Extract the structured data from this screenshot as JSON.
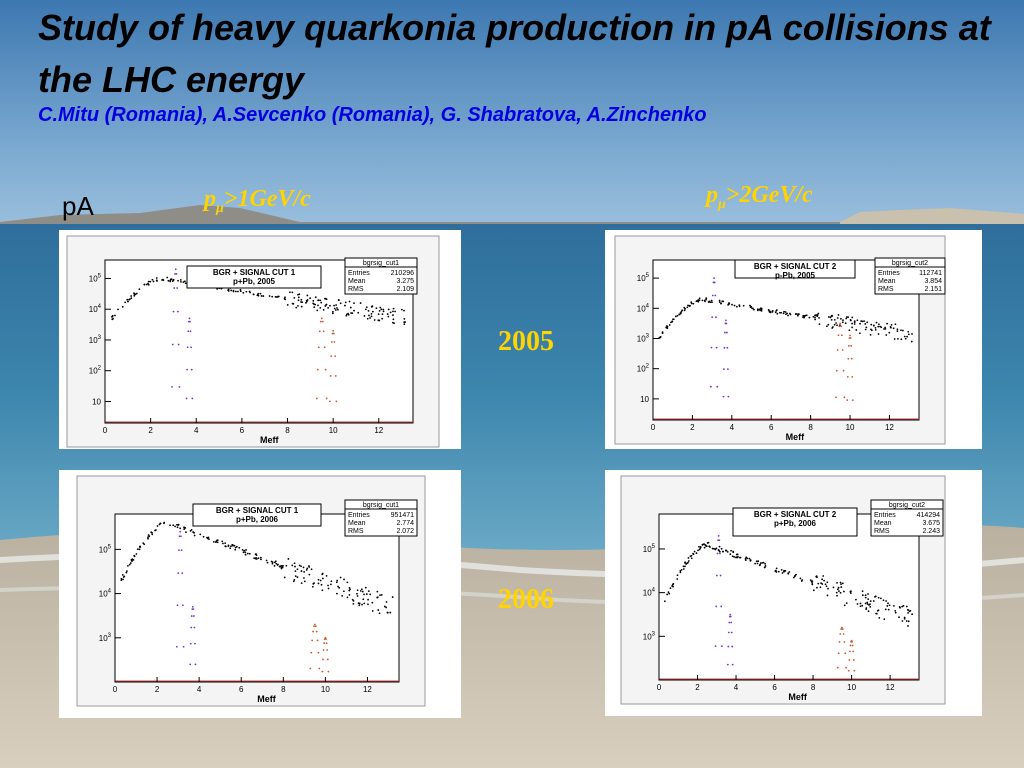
{
  "slide": {
    "title": "Study of heavy quarkonia production in pA collisions at  the LHC energy",
    "authors": "C.Mitu (Romania), A.Sevcenko (Romania), G. Shabratova, A.Zinchenko",
    "system_label": "pA",
    "cut_left": {
      "p": "p",
      "mu": "μ",
      "rest": ">1GeV/c"
    },
    "cut_right": {
      "p": "p",
      "mu": "μ",
      "rest": ">2GeV/c"
    },
    "year_2005": "2005",
    "year_2006": "2006",
    "colors": {
      "title": "#000000",
      "authors": "#0000e0",
      "accent": "#ffd400",
      "signal_jpsi": "#7733cc",
      "signal_upsilon": "#cc5533",
      "background": "#000000"
    }
  },
  "panels": [
    {
      "id": "p2005a",
      "box_line1": "BGR + SIGNAL CUT 1",
      "box_line2": "p+Pb, 2005",
      "stats_name": "bgrsig_cut1",
      "stats": [
        {
          "k": "Entries",
          "v": "210296"
        },
        {
          "k": "Mean",
          "v": "3.275"
        },
        {
          "k": "RMS",
          "v": "2.109"
        }
      ],
      "xlabel": "Meff",
      "xticks": [
        "0",
        "2",
        "4",
        "6",
        "8",
        "10",
        "12"
      ],
      "yticks": [
        {
          "label": "10",
          "exp": "5",
          "dec": 5
        },
        {
          "label": "10",
          "exp": "4",
          "dec": 4
        },
        {
          "label": "10",
          "exp": "3",
          "dec": 3
        },
        {
          "label": "10",
          "exp": "2",
          "dec": 2
        },
        {
          "label": "10",
          "exp": "",
          "dec": 1
        }
      ],
      "chart_data": {
        "type": "scatter",
        "xlim": [
          0,
          13.5
        ],
        "ylog": true,
        "ylim_decades": [
          0.3,
          5.6
        ],
        "bg_peak": 5.0,
        "bg_slope": 0.12,
        "jpsi": [
          3.1,
          5.3
        ],
        "psi2s": [
          3.7,
          3.7
        ],
        "upsilon": [
          9.5,
          3.7
        ],
        "upsilon2": [
          10.0,
          3.3
        ]
      }
    },
    {
      "id": "p2005b",
      "box_line1": "BGR + SIGNAL CUT 2",
      "box_line2": "p-Pb, 2005",
      "stats_name": "bgrsig_cut2",
      "stats": [
        {
          "k": "Entries",
          "v": "112741"
        },
        {
          "k": "Mean",
          "v": "3.854"
        },
        {
          "k": "RMS",
          "v": "2.151"
        }
      ],
      "xlabel": "Meff",
      "xticks": [
        "0",
        "2",
        "4",
        "6",
        "8",
        "10",
        "12"
      ],
      "yticks": [
        {
          "label": "10",
          "exp": "5",
          "dec": 5
        },
        {
          "label": "10",
          "exp": "4",
          "dec": 4
        },
        {
          "label": "10",
          "exp": "3",
          "dec": 3
        },
        {
          "label": "10",
          "exp": "2",
          "dec": 2
        },
        {
          "label": "10",
          "exp": "",
          "dec": 1
        }
      ],
      "chart_data": {
        "type": "scatter",
        "xlim": [
          0,
          13.5
        ],
        "ylog": true,
        "ylim_decades": [
          0.3,
          5.6
        ],
        "bg_peak": 4.3,
        "bg_slope": 0.11,
        "jpsi": [
          3.1,
          5.0
        ],
        "psi2s": [
          3.7,
          3.6
        ],
        "upsilon": [
          9.5,
          3.5
        ],
        "upsilon2": [
          10.0,
          3.1
        ]
      }
    },
    {
      "id": "p2006a",
      "box_line1": "BGR + SIGNAL CUT 1",
      "box_line2": "p+Pb, 2006",
      "stats_name": "bgrsig_cut1",
      "stats": [
        {
          "k": "Entries",
          "v": "951471"
        },
        {
          "k": "Mean",
          "v": "2.774"
        },
        {
          "k": "RMS",
          "v": "2.072"
        }
      ],
      "xlabel": "Meff",
      "xticks": [
        "0",
        "2",
        "4",
        "6",
        "8",
        "10",
        "12"
      ],
      "yticks": [
        {
          "label": "10",
          "exp": "5",
          "dec": 5
        },
        {
          "label": "10",
          "exp": "4",
          "dec": 4
        },
        {
          "label": "10",
          "exp": "3",
          "dec": 3
        }
      ],
      "chart_data": {
        "type": "scatter",
        "xlim": [
          0,
          13.5
        ],
        "ylog": true,
        "ylim_decades": [
          2.0,
          5.8
        ],
        "bg_peak": 5.6,
        "bg_slope": 0.18,
        "jpsi": [
          3.1,
          5.4
        ],
        "psi2s": [
          3.7,
          3.7
        ],
        "upsilon": [
          9.5,
          3.3
        ],
        "upsilon2": [
          10.0,
          3.0
        ]
      }
    },
    {
      "id": "p2006b",
      "box_line1": "BGR + SIGNAL CUT 2",
      "box_line2": "p+Pb, 2006",
      "stats_name": "bgrsig_cut2",
      "stats": [
        {
          "k": "Entries",
          "v": "414294"
        },
        {
          "k": "Mean",
          "v": "3.675"
        },
        {
          "k": "RMS",
          "v": "2.243"
        }
      ],
      "xlabel": "Meff",
      "xticks": [
        "0",
        "2",
        "4",
        "6",
        "8",
        "10",
        "12"
      ],
      "yticks": [
        {
          "label": "10",
          "exp": "5",
          "dec": 5
        },
        {
          "label": "10",
          "exp": "4",
          "dec": 4
        },
        {
          "label": "10",
          "exp": "3",
          "dec": 3
        }
      ],
      "chart_data": {
        "type": "scatter",
        "xlim": [
          0,
          13.5
        ],
        "ylog": true,
        "ylim_decades": [
          2.0,
          5.8
        ],
        "bg_peak": 5.1,
        "bg_slope": 0.16,
        "jpsi": [
          3.1,
          5.3
        ],
        "psi2s": [
          3.7,
          3.5
        ],
        "upsilon": [
          9.5,
          3.2
        ],
        "upsilon2": [
          10.0,
          2.9
        ]
      }
    }
  ]
}
